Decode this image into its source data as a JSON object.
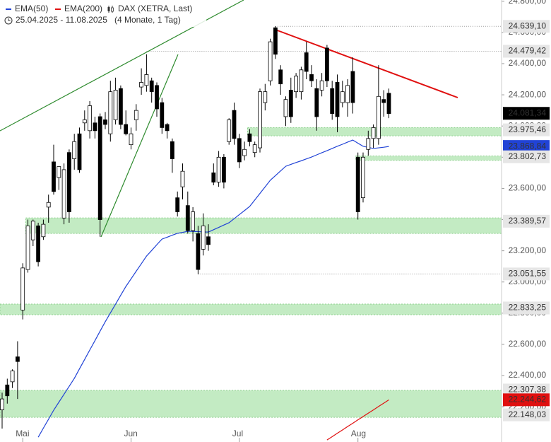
{
  "chart_data": {
    "type": "candlestick",
    "title": "DAX (XETRA, Last)",
    "date_range": "25.04.2025 - 11.08.2025",
    "period": "(4 Monate, 1 Tag)",
    "categories": [
      null,
      null,
      null,
      null,
      "Mai",
      null,
      null,
      null,
      null,
      null,
      null,
      null,
      null,
      null,
      null,
      null,
      null,
      null,
      null,
      null,
      null,
      null,
      null,
      null,
      null,
      "Jun",
      null,
      null,
      null,
      null,
      null,
      null,
      null,
      null,
      null,
      null,
      null,
      null,
      null,
      null,
      null,
      null,
      null,
      null,
      null,
      null,
      "Jul",
      null,
      null,
      null,
      null,
      null,
      null,
      null,
      null,
      null,
      null,
      null,
      null,
      null,
      null,
      null,
      null,
      null,
      null,
      null,
      null,
      null,
      null,
      "Aug",
      null,
      null,
      null,
      null,
      null,
      null
    ],
    "open": [
      22180,
      22340,
      22360,
      22520,
      22820,
      23080,
      23270,
      23360,
      23290,
      23480,
      23770,
      23670,
      23410,
      23830,
      23790,
      23950,
      24020,
      23970,
      24020,
      24060,
      24040,
      23950,
      24040,
      24240,
      24010,
      23880,
      24040,
      24250,
      24260,
      24290,
      24260,
      24150,
      24010,
      23900,
      23540,
      23610,
      23490,
      23330,
      23310,
      23210,
      23290,
      23700,
      23640,
      23800,
      23900,
      24100,
      23920,
      23810,
      23950,
      23830,
      23860,
      24150,
      24290,
      24630,
      24360,
      24060,
      24230,
      24220,
      24220,
      24470,
      24330,
      24240,
      24230,
      24500,
      24240,
      24280,
      24150,
      24150,
      24350,
      23800,
      23540,
      23850,
      23920,
      23920,
      24170,
      24210
    ],
    "high": [
      22290,
      22380,
      22440,
      22620,
      23120,
      23400,
      23400,
      23380,
      23400,
      23560,
      23880,
      23740,
      23760,
      23850,
      23950,
      23990,
      24100,
      24160,
      24060,
      24080,
      24090,
      24290,
      24310,
      24260,
      24100,
      23990,
      24140,
      24370,
      24460,
      24310,
      24280,
      24180,
      24020,
      23920,
      23580,
      23760,
      23580,
      23480,
      23360,
      23440,
      23370,
      23760,
      23840,
      23820,
      24050,
      24150,
      23950,
      23900,
      23980,
      23900,
      24240,
      24270,
      24560,
      24640,
      24390,
      24190,
      24310,
      24340,
      24380,
      24540,
      24390,
      24300,
      24340,
      24520,
      24290,
      24330,
      24290,
      24300,
      24440,
      23830,
      23830,
      23970,
      24010,
      24390,
      24230,
      24240
    ],
    "low": [
      22060,
      22220,
      22320,
      22250,
      22760,
      23060,
      23230,
      23100,
      23270,
      23380,
      23560,
      23590,
      23370,
      23380,
      23720,
      23700,
      23970,
      23920,
      23920,
      23290,
      23980,
      23900,
      24010,
      23980,
      23940,
      23850,
      23970,
      24200,
      24220,
      24150,
      24060,
      23950,
      23920,
      23700,
      23420,
      23530,
      23310,
      23260,
      23050,
      23170,
      23200,
      23620,
      23610,
      23600,
      23880,
      23880,
      23730,
      23780,
      23870,
      23800,
      23830,
      24100,
      24260,
      24430,
      24200,
      24000,
      24020,
      24180,
      24170,
      24300,
      24250,
      23970,
      24190,
      24250,
      24040,
      23960,
      24120,
      24060,
      24080,
      23400,
      23510,
      23810,
      23860,
      23880,
      24060,
      24050
    ],
    "close": [
      22250,
      22270,
      22430,
      22490,
      23090,
      23360,
      23390,
      23130,
      23370,
      23510,
      23580,
      23740,
      23720,
      23450,
      23900,
      23720,
      24040,
      24130,
      23970,
      23400,
      24010,
      24220,
      24230,
      24010,
      23950,
      23950,
      24100,
      24280,
      24330,
      24220,
      24110,
      23990,
      23970,
      23790,
      23450,
      23710,
      23330,
      23450,
      23080,
      23360,
      23240,
      23640,
      23800,
      23640,
      24040,
      23920,
      23770,
      23850,
      23900,
      23880,
      24220,
      24220,
      24540,
      24460,
      24270,
      24170,
      24060,
      24320,
      24360,
      24350,
      24290,
      24060,
      24290,
      24290,
      24080,
      24060,
      24220,
      24260,
      24150,
      23450,
      23800,
      23920,
      23990,
      24190,
      24150,
      24080
    ],
    "up_color": "#ffffff",
    "down_color": "#000000",
    "series": [
      {
        "name": "EMA(50)",
        "color": "#2143d6",
        "values": [
          null,
          null,
          null,
          null,
          null,
          null,
          null,
          22005,
          22063,
          22120,
          22178,
          22229,
          22280,
          22331,
          22382,
          22443,
          22503,
          22564,
          22624,
          22685,
          22745,
          22802,
          22858,
          22915,
          22971,
          23020,
          23069,
          23117,
          23166,
          23202,
          23239,
          23275,
          23287,
          23300,
          23312,
          23318,
          23325,
          23324,
          23323,
          23321,
          23320,
          23335,
          23350,
          23365,
          23380,
          23406,
          23432,
          23458,
          23484,
          23526,
          23568,
          23610,
          23652,
          23682,
          23712,
          23742,
          23754,
          23766,
          23777,
          23789,
          23801,
          23815,
          23829,
          23842,
          23856,
          23870,
          23883,
          23897,
          23910,
          23890,
          23870,
          23863,
          23856,
          23860,
          23864,
          23868.84
        ]
      },
      {
        "name": "EMA(200)",
        "color": "#e01010",
        "values": [
          null,
          null,
          null,
          null,
          null,
          null,
          null,
          null,
          null,
          null,
          null,
          null,
          null,
          null,
          null,
          null,
          null,
          null,
          null,
          null,
          null,
          null,
          null,
          null,
          null,
          null,
          null,
          null,
          null,
          null,
          null,
          null,
          null,
          null,
          null,
          null,
          null,
          null,
          null,
          null,
          null,
          null,
          null,
          null,
          null,
          null,
          null,
          null,
          null,
          null,
          null,
          null,
          null,
          null,
          null,
          null,
          null,
          null,
          null,
          null,
          null,
          null,
          null,
          21987,
          22008,
          22030,
          22051,
          22073,
          22094,
          22116,
          22137,
          22159,
          22180,
          22202,
          22223,
          22244.62
        ]
      }
    ],
    "ylim": [
      21974,
      24808
    ],
    "yticks": [
      {
        "value": 24800,
        "label": "24.800,00"
      },
      {
        "value": 24600,
        "label": "24.600,00"
      },
      {
        "value": 24400,
        "label": "24.400,00"
      },
      {
        "value": 24200,
        "label": "24.200,00"
      },
      {
        "value": 24000,
        "label": "24.000,00"
      },
      {
        "value": 23800,
        "label": "23.800,00"
      },
      {
        "value": 23600,
        "label": "23.600,00"
      },
      {
        "value": 23400,
        "label": "23.400,00"
      },
      {
        "value": 23200,
        "label": "23.200,00"
      },
      {
        "value": 23000,
        "label": "23.000,00"
      },
      {
        "value": 22800,
        "label": "22.800,00"
      },
      {
        "value": 22600,
        "label": "22.600,00"
      },
      {
        "value": 22400,
        "label": "22.400,00"
      },
      {
        "value": 22200,
        "label": "22.200,00"
      }
    ],
    "zones": [
      {
        "low": 23937,
        "high": 23990,
        "start": 48
      },
      {
        "low": 23780,
        "high": 23808,
        "start": 69
      },
      {
        "low": 23311,
        "high": 23411,
        "start": 5
      },
      {
        "low": 22790,
        "high": 22858,
        "start": 0
      },
      {
        "low": 22132,
        "high": 22305,
        "start": 0
      }
    ],
    "price_labels": [
      {
        "value": 24639.1,
        "label": "24.639,10",
        "bg": "#e6e6e6",
        "fg": "#333333",
        "line_from": 53
      },
      {
        "value": 24479.42,
        "label": "24.479,42",
        "bg": "#e6e6e6",
        "fg": "#333333",
        "line_from": 28
      },
      {
        "value": 24081.34,
        "label": "24.081,34",
        "bg": "#000000",
        "fg": "#ffffff"
      },
      {
        "value": 23975.46,
        "label": "23.975,46",
        "bg": "#e6e6e6",
        "fg": "#333333"
      },
      {
        "value": 23868.84,
        "label": "23.868,84",
        "bg": "#2143d6",
        "fg": "#ffffff"
      },
      {
        "value": 23802.73,
        "label": "23.802,73",
        "bg": "#e6e6e6",
        "fg": "#333333"
      },
      {
        "value": 23389.57,
        "label": "23.389,57",
        "bg": "#e6e6e6",
        "fg": "#333333"
      },
      {
        "value": 23051.55,
        "label": "23.051,55",
        "bg": "#e6e6e6",
        "fg": "#333333",
        "line_from": 38
      },
      {
        "value": 22833.25,
        "label": "22.833,25",
        "bg": "#e6e6e6",
        "fg": "#333333"
      },
      {
        "value": 22307.38,
        "label": "22.307,38",
        "bg": "#e6e6e6",
        "fg": "#333333"
      },
      {
        "value": 22244.62,
        "label": "22.244,62",
        "bg": "#e01010",
        "fg": "#333333"
      },
      {
        "value": 22148.03,
        "label": "22.148,03",
        "bg": "#e6e6e6",
        "fg": "#333333"
      }
    ]
  }
}
